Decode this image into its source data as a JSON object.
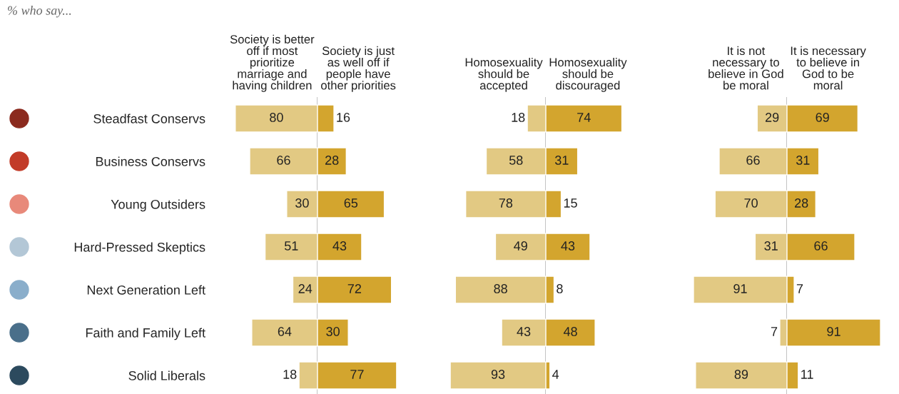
{
  "chart_data": [
    {
      "type": "bar",
      "orientation": "horizontal",
      "data_labels": true,
      "tick_labels": "y",
      "legend": false,
      "annotations": [
        "% who say..."
      ],
      "categories": [
        "Steadfast Conservs",
        "Business Conservs",
        "Young Outsiders",
        "Hard-Pressed Skeptics",
        "Next Generation Left",
        "Faith and Family Left",
        "Solid Liberals"
      ],
      "ref_lines": [
        {
          "axis": "x",
          "value": 0,
          "color": "#aaaaaa"
        }
      ],
      "series": [
        {
          "name": "Society is better\noff if most\nprioritize\nmarriage and\nhaving children",
          "color": "#e2c983",
          "values": [
            80,
            66,
            30,
            51,
            24,
            64,
            18
          ]
        }
      ]
    },
    {
      "type": "bar",
      "orientation": "horizontal",
      "data_labels": true,
      "tick_labels": false,
      "legend": false,
      "categories": [
        null,
        null,
        null,
        null,
        null,
        null,
        null
      ],
      "series": [
        {
          "name": "Society is just\nas well off if\npeople have\nother priorities",
          "color": "#d3a52e",
          "values": [
            16,
            28,
            65,
            43,
            72,
            30,
            77
          ]
        }
      ]
    },
    {
      "type": "bar",
      "orientation": "horizontal",
      "data_labels": true,
      "tick_labels": false,
      "legend": false,
      "categories": [
        null,
        null,
        null,
        null,
        null,
        null,
        null
      ],
      "ref_lines": [
        {
          "axis": "x",
          "value": 0,
          "color": "#aaaaaa"
        }
      ],
      "series": [
        {
          "name": "Homosexuality\nshould be\naccepted",
          "color": "#e2c983",
          "values": [
            18,
            58,
            78,
            49,
            88,
            43,
            93
          ]
        }
      ]
    },
    {
      "type": "bar",
      "orientation": "horizontal",
      "data_labels": true,
      "tick_labels": false,
      "legend": false,
      "categories": [
        null,
        null,
        null,
        null,
        null,
        null,
        null
      ],
      "series": [
        {
          "name": "Homosexuality\nshould be\ndiscouraged",
          "color": "#d3a52e",
          "values": [
            74,
            31,
            15,
            43,
            8,
            48,
            4
          ]
        }
      ]
    },
    {
      "type": "bar",
      "orientation": "horizontal",
      "data_labels": true,
      "tick_labels": false,
      "legend": false,
      "categories": [
        null,
        null,
        null,
        null,
        null,
        null,
        null
      ],
      "ref_lines": [
        {
          "axis": "x",
          "value": 0,
          "color": "#aaaaaa"
        }
      ],
      "series": [
        {
          "name": "It is not\nnecessary to\nbelieve in God\nbe moral",
          "color": "#e2c983",
          "values": [
            29,
            66,
            70,
            31,
            91,
            7,
            89
          ]
        }
      ]
    },
    {
      "type": "bar",
      "orientation": "horizontal",
      "data_labels": true,
      "tick_labels": false,
      "legend": false,
      "categories": [
        null,
        null,
        null,
        null,
        null,
        null,
        null
      ],
      "series": [
        {
          "name": "It is necessary\nto believe in\nGod to be\nmoral",
          "color": "#d3a52e",
          "values": [
            69,
            31,
            28,
            66,
            7,
            91,
            11
          ]
        }
      ]
    }
  ]
}
